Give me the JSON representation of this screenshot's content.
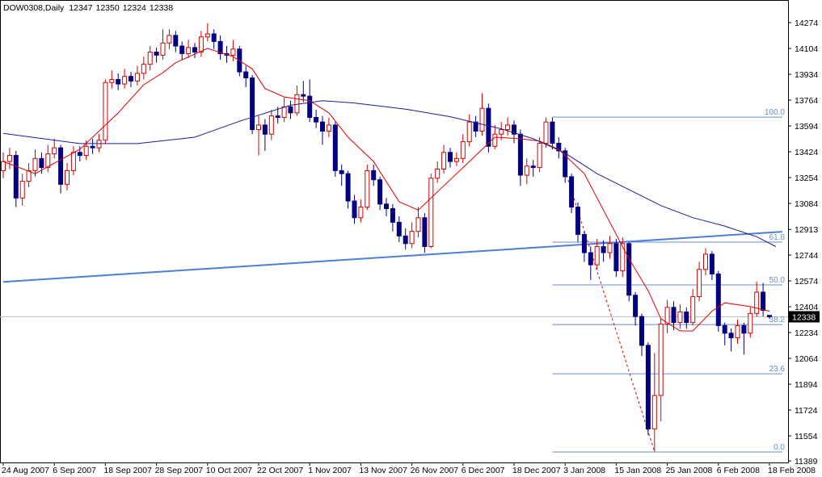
{
  "chart_data": {
    "type": "candlestick",
    "symbol": "DOW0308,Daily",
    "categories": [
      "24 Aug 2007",
      null,
      null,
      null,
      null,
      null,
      null,
      null,
      "6 Sep 2007",
      null,
      null,
      null,
      null,
      null,
      null,
      null,
      "18 Sep 2007",
      null,
      null,
      null,
      null,
      null,
      null,
      null,
      "28 Sep 2007",
      null,
      null,
      null,
      null,
      null,
      null,
      null,
      "10 Oct 2007",
      null,
      null,
      null,
      null,
      null,
      null,
      null,
      "22 Oct 2007",
      null,
      null,
      null,
      null,
      null,
      null,
      null,
      "1 Nov 2007",
      null,
      null,
      null,
      null,
      null,
      null,
      null,
      "13 Nov 2007",
      null,
      null,
      null,
      null,
      null,
      null,
      null,
      "26 Nov 2007",
      null,
      null,
      null,
      null,
      null,
      null,
      null,
      "6 Dec 2007",
      null,
      null,
      null,
      null,
      null,
      null,
      null,
      "18 Dec 2007",
      null,
      null,
      null,
      null,
      null,
      null,
      null,
      "3 Jan 2008",
      null,
      null,
      null,
      null,
      null,
      null,
      null,
      "15 Jan 2008",
      null,
      null,
      null,
      null,
      null,
      null,
      null,
      "25 Jan 2008",
      null,
      null,
      null,
      null,
      null,
      null,
      null,
      "6 Feb 2008",
      null,
      null,
      null,
      null,
      null,
      null,
      null,
      "18 Feb 2008"
    ],
    "open": [
      13300,
      13360,
      13400,
      13120,
      13230,
      13300,
      13380,
      13320,
      13410,
      13450,
      13210,
      13300,
      13420,
      13400,
      13460,
      13450,
      13500,
      13880,
      13900,
      13870,
      13920,
      13890,
      13940,
      14000,
      14080,
      14060,
      14140,
      14190,
      14120,
      14070,
      14110,
      14080,
      14180,
      14200,
      14150,
      14070,
      14060,
      14100,
      13950,
      13910,
      13570,
      13600,
      13540,
      13660,
      13650,
      13720,
      13680,
      13800,
      13790,
      13650,
      13620,
      13560,
      13600,
      13300,
      13280,
      13100,
      12990,
      13060,
      13300,
      13240,
      13080,
      13050,
      12960,
      12870,
      12820,
      12900,
      12990,
      12800,
      13250,
      13310,
      13420,
      13360,
      13380,
      13490,
      13620,
      13560,
      13710,
      13460,
      13540,
      13570,
      13600,
      13540,
      13270,
      13330,
      13320,
      13480,
      13620,
      13480,
      13430,
      13260,
      13060,
      12880,
      12760,
      12680,
      12800,
      12760,
      12820,
      12640,
      12820,
      12480,
      12340,
      12150,
      11600,
      11820,
      12290,
      12400,
      12300,
      12370,
      12300,
      12470,
      12650,
      12750,
      12620,
      12280,
      12230,
      12200,
      12280,
      12230,
      12360,
      12500,
      12347
    ],
    "high": [
      13420,
      13450,
      13430,
      13280,
      13350,
      13440,
      13420,
      13470,
      13510,
      13470,
      13350,
      13460,
      13460,
      13500,
      13510,
      13540,
      13900,
      13960,
      13940,
      13970,
      13950,
      13990,
      14050,
      14120,
      14110,
      14230,
      14230,
      14220,
      14150,
      14160,
      14140,
      14220,
      14270,
      14230,
      14190,
      14120,
      14160,
      14120,
      13990,
      13930,
      13660,
      13640,
      13700,
      13720,
      13780,
      13760,
      13860,
      13890,
      13900,
      13700,
      13660,
      13650,
      13620,
      13340,
      13300,
      13140,
      13110,
      13340,
      13340,
      13260,
      13120,
      13080,
      13000,
      12920,
      12960,
      13060,
      13020,
      13280,
      13360,
      13470,
      13450,
      13420,
      13540,
      13670,
      13660,
      13810,
      13740,
      13600,
      13620,
      13650,
      13630,
      13570,
      13380,
      13370,
      13520,
      13650,
      13650,
      13520,
      13450,
      13280,
      13090,
      12900,
      12800,
      12850,
      12840,
      12870,
      12850,
      12860,
      12830,
      12500,
      12360,
      12170,
      12100,
      12330,
      12450,
      12440,
      12420,
      12400,
      12520,
      12700,
      12790,
      12770,
      12640,
      12300,
      12260,
      12320,
      12300,
      12400,
      12570,
      12560,
      12350
    ],
    "low": [
      13250,
      13310,
      13060,
      13070,
      13190,
      13260,
      13280,
      13290,
      13380,
      13150,
      13170,
      13270,
      13360,
      13370,
      13410,
      13420,
      13480,
      13840,
      13830,
      13840,
      13850,
      13860,
      13900,
      13960,
      14010,
      14030,
      14100,
      14080,
      14030,
      14040,
      14040,
      14050,
      14150,
      14100,
      14030,
      14010,
      14020,
      13920,
      13850,
      13540,
      13400,
      13430,
      13500,
      13610,
      13620,
      13640,
      13660,
      13750,
      13620,
      13580,
      13470,
      13520,
      13260,
      13200,
      13050,
      12950,
      12960,
      13040,
      13200,
      13040,
      13000,
      12900,
      12830,
      12780,
      12790,
      12860,
      12760,
      12790,
      13220,
      13280,
      13320,
      13330,
      13350,
      13460,
      13520,
      13530,
      13420,
      13440,
      13500,
      13530,
      13480,
      13200,
      13210,
      13260,
      13290,
      13450,
      13440,
      13380,
      13220,
      13020,
      12830,
      12700,
      12580,
      12650,
      12700,
      12720,
      12600,
      12600,
      12440,
      12280,
      12080,
      11560,
      11450,
      11650,
      12230,
      12250,
      12260,
      12260,
      12280,
      12440,
      12610,
      12580,
      12240,
      12150,
      12110,
      12160,
      12090,
      12200,
      12340,
      12340,
      12324
    ],
    "close": [
      13360,
      13400,
      13120,
      13230,
      13300,
      13380,
      13320,
      13410,
      13450,
      13210,
      13300,
      13420,
      13400,
      13460,
      13450,
      13500,
      13880,
      13900,
      13870,
      13920,
      13890,
      13940,
      14000,
      14080,
      14060,
      14140,
      14190,
      14120,
      14070,
      14110,
      14080,
      14180,
      14200,
      14150,
      14070,
      14060,
      14100,
      13950,
      13910,
      13570,
      13600,
      13540,
      13660,
      13650,
      13720,
      13680,
      13800,
      13790,
      13650,
      13620,
      13560,
      13600,
      13300,
      13280,
      13100,
      12990,
      13060,
      13300,
      13240,
      13080,
      13050,
      12960,
      12870,
      12820,
      12900,
      12990,
      12800,
      13250,
      13310,
      13420,
      13360,
      13380,
      13490,
      13620,
      13560,
      13710,
      13460,
      13540,
      13570,
      13600,
      13540,
      13270,
      13330,
      13320,
      13480,
      13620,
      13480,
      13430,
      13260,
      13060,
      12880,
      12760,
      12680,
      12800,
      12760,
      12820,
      12640,
      12820,
      12480,
      12340,
      12150,
      11600,
      11820,
      12290,
      12400,
      12300,
      12370,
      12300,
      12470,
      12650,
      12750,
      12620,
      12280,
      12230,
      12200,
      12280,
      12230,
      12360,
      12500,
      12380,
      12338
    ],
    "up_color": "#d40000",
    "down_color": "#000080",
    "ylim": [
      11379,
      14423
    ],
    "yticks": [
      14274,
      14104,
      13934,
      13764,
      13594,
      13424,
      13254,
      13084,
      12913,
      12744,
      12574,
      12404,
      12234,
      12064,
      11894,
      11724,
      11554,
      11389
    ],
    "moving_averages": [
      {
        "color": "#e00000",
        "x": [
          0,
          5,
          12,
          18,
          22,
          25,
          27,
          32,
          36,
          39,
          41,
          44,
          48,
          51,
          54,
          58,
          62,
          65,
          69,
          73,
          77,
          81,
          84,
          87,
          91,
          94,
          98,
          101,
          103,
          106,
          108,
          111,
          113,
          117,
          120
        ],
        "values": [
          13360,
          13280,
          13440,
          13680,
          13865,
          13945,
          14010,
          14105,
          14050,
          13970,
          13840,
          13785,
          13760,
          13680,
          13520,
          13360,
          13095,
          13040,
          13200,
          13360,
          13520,
          13510,
          13495,
          13440,
          13280,
          13040,
          12720,
          12510,
          12325,
          12245,
          12245,
          12375,
          12430,
          12405,
          12375
        ]
      },
      {
        "color": "#1c1c9c",
        "x": [
          0,
          12,
          21,
          30,
          37,
          45,
          50,
          55,
          63,
          70,
          78,
          83,
          88,
          93,
          98,
          103,
          108,
          113,
          118,
          121
        ],
        "values": [
          13545,
          13478,
          13478,
          13520,
          13625,
          13730,
          13760,
          13745,
          13705,
          13655,
          13575,
          13510,
          13415,
          13280,
          13175,
          13070,
          12990,
          12935,
          12865,
          12800
        ]
      }
    ],
    "trendline": {
      "color": "#4a7fd4",
      "x": [
        0,
        122
      ],
      "values": [
        12568,
        12898
      ]
    },
    "fibonacci": {
      "color": "#6a8ec8",
      "x": [
        86,
        122
      ],
      "levels": [
        {
          "value": 13652,
          "label": "100.0"
        },
        {
          "value": 12829,
          "label": "61.8"
        },
        {
          "value": 12548,
          "label": "50.0"
        },
        {
          "value": 12287,
          "label": "38.2"
        },
        {
          "value": 11963,
          "label": "23.6"
        },
        {
          "value": 11448,
          "label": "0.0"
        }
      ]
    },
    "fib_swing": {
      "color": "#e00000",
      "x": [
        88,
        102
      ],
      "values": [
        13300,
        11450
      ]
    },
    "price_line_color": "#c0c0c0"
  }
}
